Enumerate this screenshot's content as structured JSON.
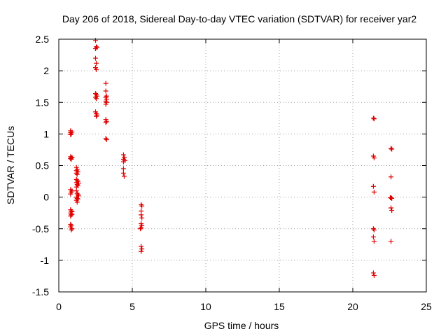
{
  "chart_data": {
    "type": "scatter",
    "title": "Day 206 of 2018, Sidereal Day-to-day VTEC variation (SDTVAR) for receiver yar2",
    "xlabel": "GPS time / hours",
    "ylabel": "SDTVAR / TECUs",
    "xlim": [
      0,
      25
    ],
    "ylim": [
      -1.5,
      2.5
    ],
    "xticks": [
      0,
      5,
      10,
      15,
      20,
      25
    ],
    "yticks": [
      -1.5,
      -1,
      -0.5,
      0,
      0.5,
      1,
      1.5,
      2,
      2.5
    ],
    "grid": true,
    "marker": "+",
    "color": "#e00000",
    "series": [
      {
        "name": "SDTVAR",
        "points": [
          [
            0.8,
            1.05
          ],
          [
            0.8,
            1.02
          ],
          [
            0.85,
            1.0
          ],
          [
            0.8,
            0.99
          ],
          [
            0.9,
            1.03
          ],
          [
            0.8,
            0.64
          ],
          [
            0.85,
            0.62
          ],
          [
            0.9,
            0.63
          ],
          [
            0.8,
            0.61
          ],
          [
            0.85,
            0.6
          ],
          [
            0.8,
            0.12
          ],
          [
            0.85,
            0.08
          ],
          [
            0.9,
            0.1
          ],
          [
            0.8,
            0.05
          ],
          [
            0.8,
            -0.2
          ],
          [
            0.85,
            -0.22
          ],
          [
            0.8,
            -0.25
          ],
          [
            0.9,
            -0.27
          ],
          [
            0.85,
            -0.28
          ],
          [
            0.8,
            -0.3
          ],
          [
            0.9,
            -0.23
          ],
          [
            0.8,
            -0.43
          ],
          [
            0.85,
            -0.45
          ],
          [
            0.8,
            -0.47
          ],
          [
            0.9,
            -0.5
          ],
          [
            0.85,
            -0.52
          ],
          [
            1.2,
            0.47
          ],
          [
            1.25,
            0.44
          ],
          [
            1.2,
            0.42
          ],
          [
            1.3,
            0.4
          ],
          [
            1.2,
            0.38
          ],
          [
            1.25,
            0.36
          ],
          [
            1.2,
            0.28
          ],
          [
            1.25,
            0.26
          ],
          [
            1.3,
            0.25
          ],
          [
            1.2,
            0.23
          ],
          [
            1.35,
            0.22
          ],
          [
            1.25,
            0.2
          ],
          [
            1.3,
            0.18
          ],
          [
            1.2,
            0.16
          ],
          [
            1.2,
            0.1
          ],
          [
            1.25,
            0.06
          ],
          [
            1.3,
            0.04
          ],
          [
            1.35,
            0.02
          ],
          [
            1.2,
            0.0
          ],
          [
            1.25,
            -0.02
          ],
          [
            1.3,
            -0.03
          ],
          [
            1.2,
            -0.05
          ],
          [
            1.25,
            -0.08
          ],
          [
            2.5,
            2.48
          ],
          [
            2.55,
            2.38
          ],
          [
            2.5,
            2.35
          ],
          [
            2.6,
            2.37
          ],
          [
            2.5,
            2.2
          ],
          [
            2.55,
            2.12
          ],
          [
            2.5,
            2.05
          ],
          [
            2.55,
            2.02
          ],
          [
            2.5,
            1.64
          ],
          [
            2.55,
            1.62
          ],
          [
            2.6,
            1.6
          ],
          [
            2.5,
            1.58
          ],
          [
            2.55,
            1.56
          ],
          [
            2.5,
            1.35
          ],
          [
            2.55,
            1.32
          ],
          [
            2.6,
            1.3
          ],
          [
            2.55,
            1.28
          ],
          [
            3.2,
            1.8
          ],
          [
            3.2,
            1.68
          ],
          [
            3.25,
            1.6
          ],
          [
            3.2,
            1.58
          ],
          [
            3.25,
            1.55
          ],
          [
            3.2,
            1.52
          ],
          [
            3.25,
            1.5
          ],
          [
            3.2,
            1.47
          ],
          [
            3.2,
            1.23
          ],
          [
            3.25,
            1.2
          ],
          [
            3.2,
            1.18
          ],
          [
            3.2,
            0.93
          ],
          [
            3.25,
            0.91
          ],
          [
            4.4,
            0.67
          ],
          [
            4.45,
            0.63
          ],
          [
            4.4,
            0.6
          ],
          [
            4.5,
            0.58
          ],
          [
            4.4,
            0.56
          ],
          [
            4.4,
            0.45
          ],
          [
            4.4,
            0.38
          ],
          [
            4.45,
            0.33
          ],
          [
            5.6,
            -0.12
          ],
          [
            5.65,
            -0.14
          ],
          [
            5.6,
            -0.22
          ],
          [
            5.6,
            -0.28
          ],
          [
            5.65,
            -0.33
          ],
          [
            5.6,
            -0.42
          ],
          [
            5.65,
            -0.45
          ],
          [
            5.6,
            -0.48
          ],
          [
            5.55,
            -0.5
          ],
          [
            5.6,
            -0.78
          ],
          [
            5.65,
            -0.82
          ],
          [
            5.6,
            -0.86
          ],
          [
            21.4,
            1.25
          ],
          [
            21.45,
            1.24
          ],
          [
            21.4,
            0.65
          ],
          [
            21.45,
            0.62
          ],
          [
            21.4,
            0.17
          ],
          [
            21.45,
            0.08
          ],
          [
            21.4,
            -0.5
          ],
          [
            21.45,
            -0.52
          ],
          [
            21.4,
            -0.63
          ],
          [
            21.45,
            -0.7
          ],
          [
            21.4,
            -1.2
          ],
          [
            21.45,
            -1.24
          ],
          [
            22.6,
            0.77
          ],
          [
            22.65,
            0.76
          ],
          [
            22.6,
            0.32
          ],
          [
            22.6,
            -0.01
          ],
          [
            22.65,
            -0.02
          ],
          [
            22.55,
            -0.01
          ],
          [
            22.6,
            -0.17
          ],
          [
            22.65,
            -0.21
          ],
          [
            22.6,
            -0.7
          ]
        ]
      }
    ]
  }
}
